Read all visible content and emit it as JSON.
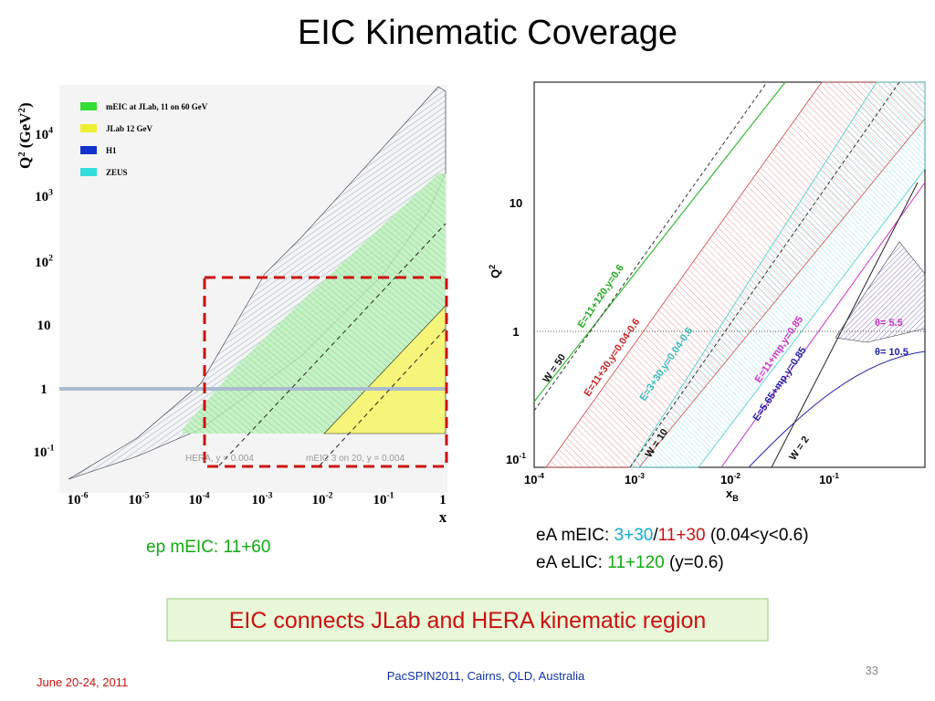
{
  "title": "EIC Kinematic Coverage",
  "left_plot": {
    "y_label": {
      "base": "Q",
      "exp": "2",
      "unit": "(GeV",
      "unit_exp": "2",
      "close": ")"
    },
    "x_label": "x",
    "xticks": [
      {
        "base": "10",
        "exp": "-6"
      },
      {
        "base": "10",
        "exp": "-5"
      },
      {
        "base": "10",
        "exp": "-4"
      },
      {
        "base": "10",
        "exp": "-3"
      },
      {
        "base": "10",
        "exp": "-2"
      },
      {
        "base": "10",
        "exp": "-1"
      },
      {
        "base": "1",
        "exp": ""
      }
    ],
    "yticks": [
      {
        "base": "10",
        "exp": "-1"
      },
      {
        "base": "1",
        "exp": ""
      },
      {
        "base": "10",
        "exp": ""
      },
      {
        "base": "10",
        "exp": "2"
      },
      {
        "base": "10",
        "exp": "3"
      },
      {
        "base": "10",
        "exp": "4"
      }
    ],
    "legend": [
      "mEIC at JLab, 11 on 60 GeV",
      "JLab 12 GeV",
      "H1",
      "ZEUS"
    ],
    "annotations": [
      "HERA, y = 0.004",
      "mEIC 3 on 20, y = 0.004"
    ]
  },
  "right_plot": {
    "y_label": {
      "base": "Q",
      "exp": "2"
    },
    "x_label": {
      "base": "x",
      "sub": "B"
    },
    "xticks": [
      {
        "base": "10",
        "exp": "-4"
      },
      {
        "base": "10",
        "exp": "-3"
      },
      {
        "base": "10",
        "exp": "-2"
      },
      {
        "base": "10",
        "exp": "-1"
      }
    ],
    "yticks": [
      {
        "base": "10",
        "exp": "-1"
      },
      {
        "base": "1",
        "exp": ""
      },
      {
        "base": "10",
        "exp": ""
      }
    ],
    "annotations": [
      "W = 50",
      "E=11+120,y=0.6",
      "E=11+30,y=0.04-0.6",
      "E=3+30,y=0.04-0.6",
      "W = 10",
      "E=11+mp,y=0.85",
      "E=5.65+mp,y=0.85",
      "W = 2",
      "θ= 5.5",
      "θ= 10.5"
    ]
  },
  "left_caption": {
    "prefix": "ep mEIC: ",
    "highlight": "11+60"
  },
  "right_caption": [
    {
      "prefix": "eA mEIC: ",
      "part1": "3+30",
      "sep": "/",
      "part2": "11+30",
      "suffix": " (0.04<y<0.6)"
    },
    {
      "prefix": "eA eLIC: ",
      "part1": "11+120",
      "suffix": " (y=0.6)"
    }
  ],
  "banner": "EIC connects JLab and HERA kinematic region",
  "footer": {
    "date": "June 20-24, 2011",
    "event": "PacSPIN2011, Cairns, QLD, Australia",
    "page": "33"
  }
}
